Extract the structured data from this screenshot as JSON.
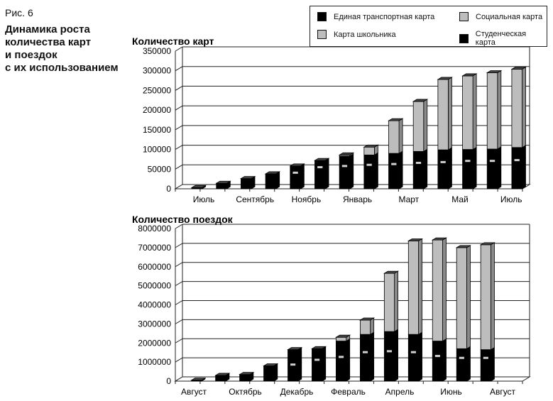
{
  "figure": {
    "number": "Рис. 6",
    "title_lines": [
      "Динамика роста",
      "количества карт",
      "и поездок",
      "с их использованием"
    ]
  },
  "legend": [
    {
      "label": "Единая транспортная карта",
      "color": "#000000"
    },
    {
      "label": "Социальная карта",
      "color": "#bdbdbd"
    },
    {
      "label": "Карта школьника",
      "color": "#bdbdbd"
    },
    {
      "label": "Студенческая карта",
      "color": "#000000"
    }
  ],
  "chart_data": [
    {
      "type": "bar",
      "stacked": true,
      "title": "Количество карт",
      "x_tick_labels": [
        "Июль",
        "Сентябрь",
        "Ноябрь",
        "Январь",
        "Март",
        "Май",
        "Июль"
      ],
      "y_ticks": [
        0,
        50000,
        100000,
        150000,
        200000,
        250000,
        300000,
        350000
      ],
      "ylim": [
        0,
        350000
      ],
      "grid": true,
      "series": [
        {
          "name": "Единая транспортная карта",
          "color": "#000000",
          "values": [
            3000,
            14000,
            26000,
            38000,
            40000,
            54000,
            57000,
            60000,
            62000,
            65000,
            67000,
            70000,
            70000,
            72000
          ]
        },
        {
          "name": "Студенческая карта",
          "color": "#000000",
          "values": [
            0,
            0,
            0,
            0,
            18000,
            18000,
            26000,
            26000,
            28000,
            30000,
            32000,
            30000,
            31000,
            33000
          ]
        },
        {
          "name": "Социальная карта",
          "color": "#bdbdbd",
          "values": [
            0,
            0,
            0,
            0,
            0,
            0,
            3000,
            20000,
            83000,
            127000,
            179000,
            187000,
            194000,
            199000
          ]
        }
      ]
    },
    {
      "type": "bar",
      "stacked": true,
      "title": "Количество поездок",
      "x_tick_labels": [
        "Август",
        "Октябрь",
        "Декабрь",
        "Февраль",
        "Апрель",
        "Июнь",
        "Август"
      ],
      "y_ticks": [
        0,
        1000000,
        2000000,
        3000000,
        4000000,
        5000000,
        6000000,
        7000000,
        8000000
      ],
      "ylim": [
        0,
        8000000
      ],
      "grid": true,
      "series": [
        {
          "name": "Единая транспортная карта",
          "color": "#000000",
          "values": [
            50000,
            300000,
            350000,
            800000,
            850000,
            1100000,
            1250000,
            1500000,
            1550000,
            1500000,
            1300000,
            1200000,
            1200000
          ]
        },
        {
          "name": "Студенческая карта",
          "color": "#000000",
          "values": [
            0,
            0,
            0,
            0,
            800000,
            600000,
            850000,
            950000,
            1050000,
            950000,
            800000,
            500000,
            450000
          ]
        },
        {
          "name": "Социальная карта",
          "color": "#bdbdbd",
          "values": [
            0,
            0,
            0,
            0,
            0,
            0,
            200000,
            750000,
            3050000,
            4900000,
            5300000,
            5300000,
            5500000
          ]
        }
      ]
    }
  ]
}
